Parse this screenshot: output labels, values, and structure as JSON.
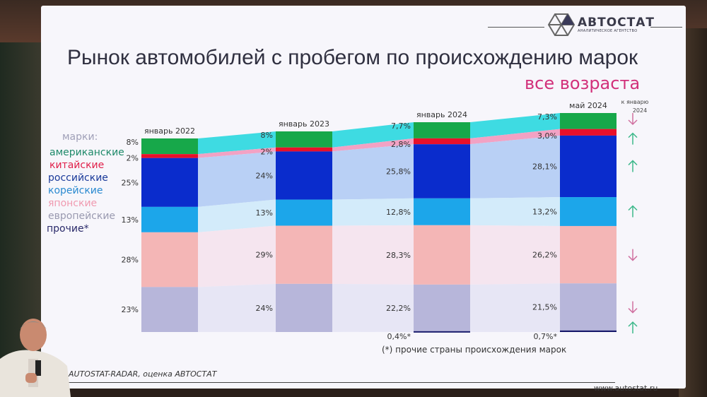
{
  "slide": {
    "title": "Рынок автомобилей с пробегом по происхождению марок",
    "subtitle": "все возраста",
    "logo": {
      "name": "АВТОСТАТ",
      "tagline": "АНАЛИТИЧЕСКОЕ АГЕНТСТВО"
    },
    "legend_heading": "марки:",
    "footnote": "(*) прочие страны происхождения марок",
    "source": "AUTOSTAT-RADAR, оценка АВТОСТАТ",
    "url": "www.autostat.ru",
    "change_header": [
      "к январю",
      "2024"
    ]
  },
  "chart_data": {
    "type": "bar",
    "stacked": true,
    "percent": true,
    "categories": [
      "январь 2022",
      "январь 2023",
      "январь 2024",
      "май 2024"
    ],
    "series": [
      {
        "name": "американские",
        "color": "#17a84a",
        "link_color": "#3edbe2",
        "values": [
          8,
          8,
          7.7,
          7.3
        ],
        "labels": [
          "8%",
          "8%",
          "7,7%",
          "7,3%"
        ],
        "change": "down"
      },
      {
        "name": "китайские",
        "color": "#e8102a",
        "link_color": "#f2a2c4",
        "values": [
          2,
          2,
          2.8,
          3.0
        ],
        "labels": [
          "2%",
          "2%",
          "2,8%",
          "3,0%"
        ],
        "change": "up"
      },
      {
        "name": "российские",
        "color": "#0a2ccc",
        "link_color": "#b9d0f5",
        "values": [
          25,
          24,
          25.8,
          28.1
        ],
        "labels": [
          "25%",
          "24%",
          "25,8%",
          "28,1%"
        ],
        "change": "up"
      },
      {
        "name": "корейские",
        "color": "#1ca6ea",
        "link_color": "#d3ebfa",
        "values": [
          13,
          13,
          12.8,
          13.2
        ],
        "labels": [
          "13%",
          "13%",
          "12,8%",
          "13,2%"
        ],
        "change": "up"
      },
      {
        "name": "японские",
        "color": "#f4b6b6",
        "link_color": "#f5e5ef",
        "values": [
          28,
          29,
          28.3,
          26.2
        ],
        "labels": [
          "28%",
          "29%",
          "28,3%",
          "26,2%"
        ],
        "change": "down"
      },
      {
        "name": "европейские",
        "color": "#b7b6da",
        "link_color": "#e7e6f5",
        "values": [
          23,
          24,
          22.2,
          21.5
        ],
        "labels": [
          "23%",
          "24%",
          "22,2%",
          "21,5%"
        ],
        "change": "down"
      },
      {
        "name": "прочие*",
        "color": "#16186a",
        "link_color": "#e7e6f5",
        "values": [
          null,
          null,
          0.4,
          0.7
        ],
        "labels": [
          "",
          "",
          "0,4%*",
          "0,7%*"
        ],
        "change": "up"
      }
    ],
    "legend_colors": [
      "#1f8a6a",
      "#e0204a",
      "#1a3a9a",
      "#2a8ad0",
      "#f09ab0",
      "#9a9ab0",
      "#2a2a6a"
    ],
    "change_colors": {
      "up": "#3cb88a",
      "down": "#d070a0"
    }
  }
}
